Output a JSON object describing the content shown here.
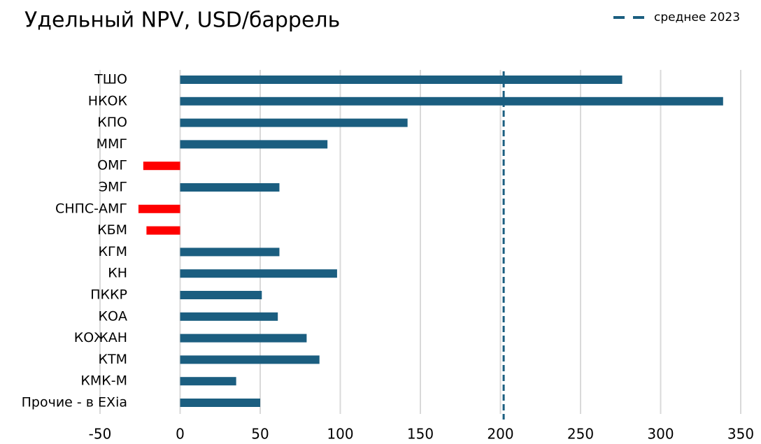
{
  "chart_data": {
    "type": "hbar",
    "title": "Удельный NPV, USD/баррель",
    "categories": [
      "ТШО",
      "НКОК",
      "КПО",
      "ММГ",
      "ОМГ",
      "ЭМГ",
      "СНПС-АМГ",
      "КБМ",
      "КГМ",
      "КН",
      "ПККР",
      "КОА",
      "КОЖАН",
      "КТМ",
      "КМК-М",
      "Прочие - в EXia"
    ],
    "values": [
      276,
      339,
      142,
      92,
      -23,
      62,
      -26,
      -21,
      62,
      98,
      51,
      61,
      79,
      87,
      35,
      50
    ],
    "color": "#1b5e80",
    "negative_color": "#ff0000",
    "average": {
      "name": "среднее 2023",
      "value": 202,
      "color": "#1b5e80"
    },
    "xlim": [
      -50,
      350
    ],
    "xticks": [
      -50,
      0,
      50,
      100,
      150,
      200,
      250,
      300,
      350
    ],
    "grid": true
  }
}
